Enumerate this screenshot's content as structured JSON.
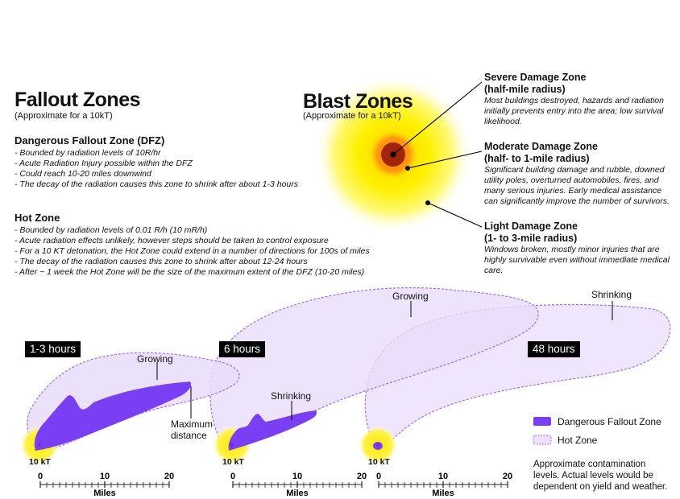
{
  "fallout": {
    "title": "Fallout Zones",
    "subtitle": "(Approximate for a 10kT)",
    "dfz": {
      "heading": "Dangerous Fallout Zone (DFZ)",
      "bullets": [
        "Bounded by radiation levels of 10R/hr",
        "Acute Radiation Injury possible within the DFZ",
        "Could reach 10-20 miles downwind",
        "The decay of the radiation causes this zone to shrink after about 1-3 hours"
      ]
    },
    "hot": {
      "heading": "Hot Zone",
      "bullets": [
        "Bounded by radiation levels of 0.01 R/h (10 mR/h)",
        "Acute radiation effects unlikely, however steps should be taken to control exposure",
        "For a 10 KT detonation, the Hot Zone could extend in a number of directions for 100s of miles",
        "The decay of the radiation causes this zone to shrink after about 12-24 hours",
        "After ~ 1 week the Hot Zone will be the size of the maximum extent of the DFZ (10-20 miles)"
      ]
    }
  },
  "blast": {
    "title": "Blast Zones",
    "subtitle": "(Approximate for a 10kT)",
    "zones": [
      {
        "title": "Severe Damage Zone",
        "radius": "(half-mile radius)",
        "desc": "Most buildings destroyed, hazards and radiation initially prevents entry into the area; low survival likelihood."
      },
      {
        "title": "Moderate Damage Zone",
        "radius": "(half- to 1-mile radius)",
        "desc": "Significant building damage and rubble, downed utility poles, overturned automobiles, fires, and many serious injuries. Early medical assistance can significantly improve the number of survivors."
      },
      {
        "title": "Light Damage Zone",
        "radius": "(1- to 3-mile radius)",
        "desc": "Windows broken, mostly minor injuries that are highly survivable even without immediate medical care."
      }
    ]
  },
  "panels": [
    {
      "time": "1-3 hours",
      "yield": "10 kT",
      "labels": [
        "Growing",
        "Maximum",
        "distance"
      ]
    },
    {
      "time": "6 hours",
      "yield": "10 kT",
      "labels": [
        "Shrinking",
        "Growing"
      ]
    },
    {
      "time": "48 hours",
      "yield": "10 kT",
      "labels": [
        "Shrinking"
      ]
    }
  ],
  "scale": {
    "ticks": [
      "0",
      "10",
      "20"
    ],
    "unit": "Miles"
  },
  "legend": {
    "dfz": "Dangerous Fallout Zone",
    "hot": "Hot Zone"
  },
  "note": [
    "Approximate contamination",
    "levels. Actual levels would be",
    "dependent on yield and weather."
  ],
  "colors": {
    "dfz": "#7a3ff2",
    "hot_fill": "#ece0fb",
    "hot_stroke": "#9b6ef0",
    "blast_yellow": "#ffee00"
  }
}
